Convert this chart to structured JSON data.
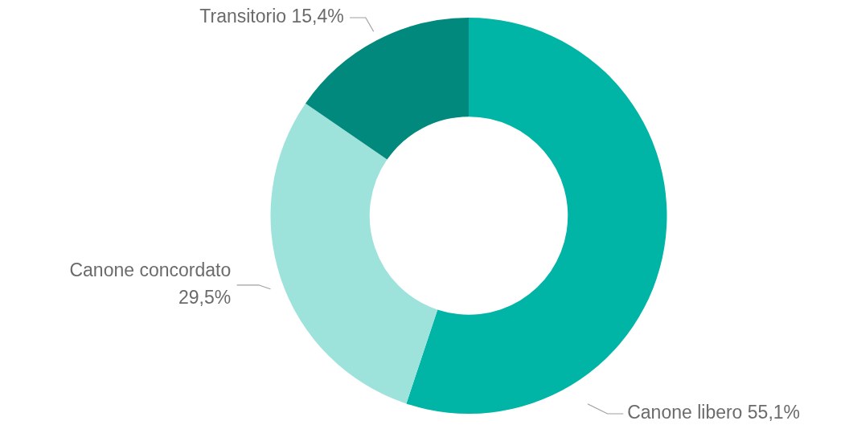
{
  "chart_data": {
    "type": "donut",
    "categories": [
      "Canone libero",
      "Canone concordato",
      "Transitorio"
    ],
    "values": [
      55.1,
      29.5,
      15.4
    ],
    "colors": [
      "#00b5a6",
      "#9de3db",
      "#00897c"
    ],
    "value_labels": [
      "55,1%",
      "29,5%",
      "15,4%"
    ],
    "legend": false
  }
}
